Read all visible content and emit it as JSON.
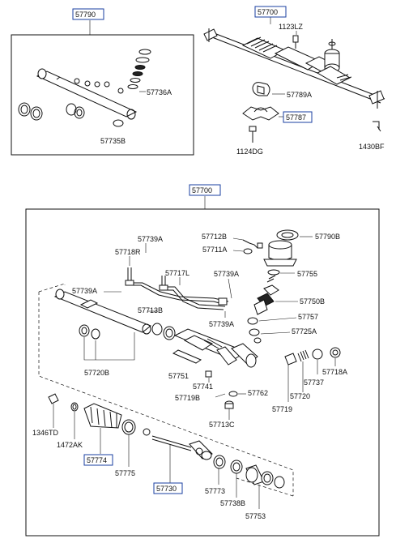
{
  "labels": {
    "l57790": "57790",
    "l57700_top": "57700",
    "l1123LZ": "1123LZ",
    "l57736A": "57736A",
    "l57735B": "57735B",
    "l57789A": "57789A",
    "l57787": "57787",
    "l1124DG": "1124DG",
    "l1430BF": "1430BF",
    "l57700_main": "57700",
    "l57739A_1": "57739A",
    "l57712B": "57712B",
    "l57790B": "57790B",
    "l57718R": "57718R",
    "l57711A": "57711A",
    "l57717L": "57717L",
    "l57739A_2": "57739A",
    "l57755": "57755",
    "l57739A_3": "57739A",
    "l57750B": "57750B",
    "l57713B": "57713B",
    "l57739A_4": "57739A",
    "l57757": "57757",
    "l57725A": "57725A",
    "l57720B": "57720B",
    "l57751": "57751",
    "l57741": "57741",
    "l57737": "57737",
    "l57718A": "57718A",
    "l57719B": "57719B",
    "l57762": "57762",
    "l57720": "57720",
    "l57719": "57719",
    "l57713C": "57713C",
    "l1346TD": "1346TD",
    "l1472AK": "1472AK",
    "l57774": "57774",
    "l57775": "57775",
    "l57730": "57730",
    "l57773": "57773",
    "l57738B": "57738B",
    "l57753": "57753"
  }
}
